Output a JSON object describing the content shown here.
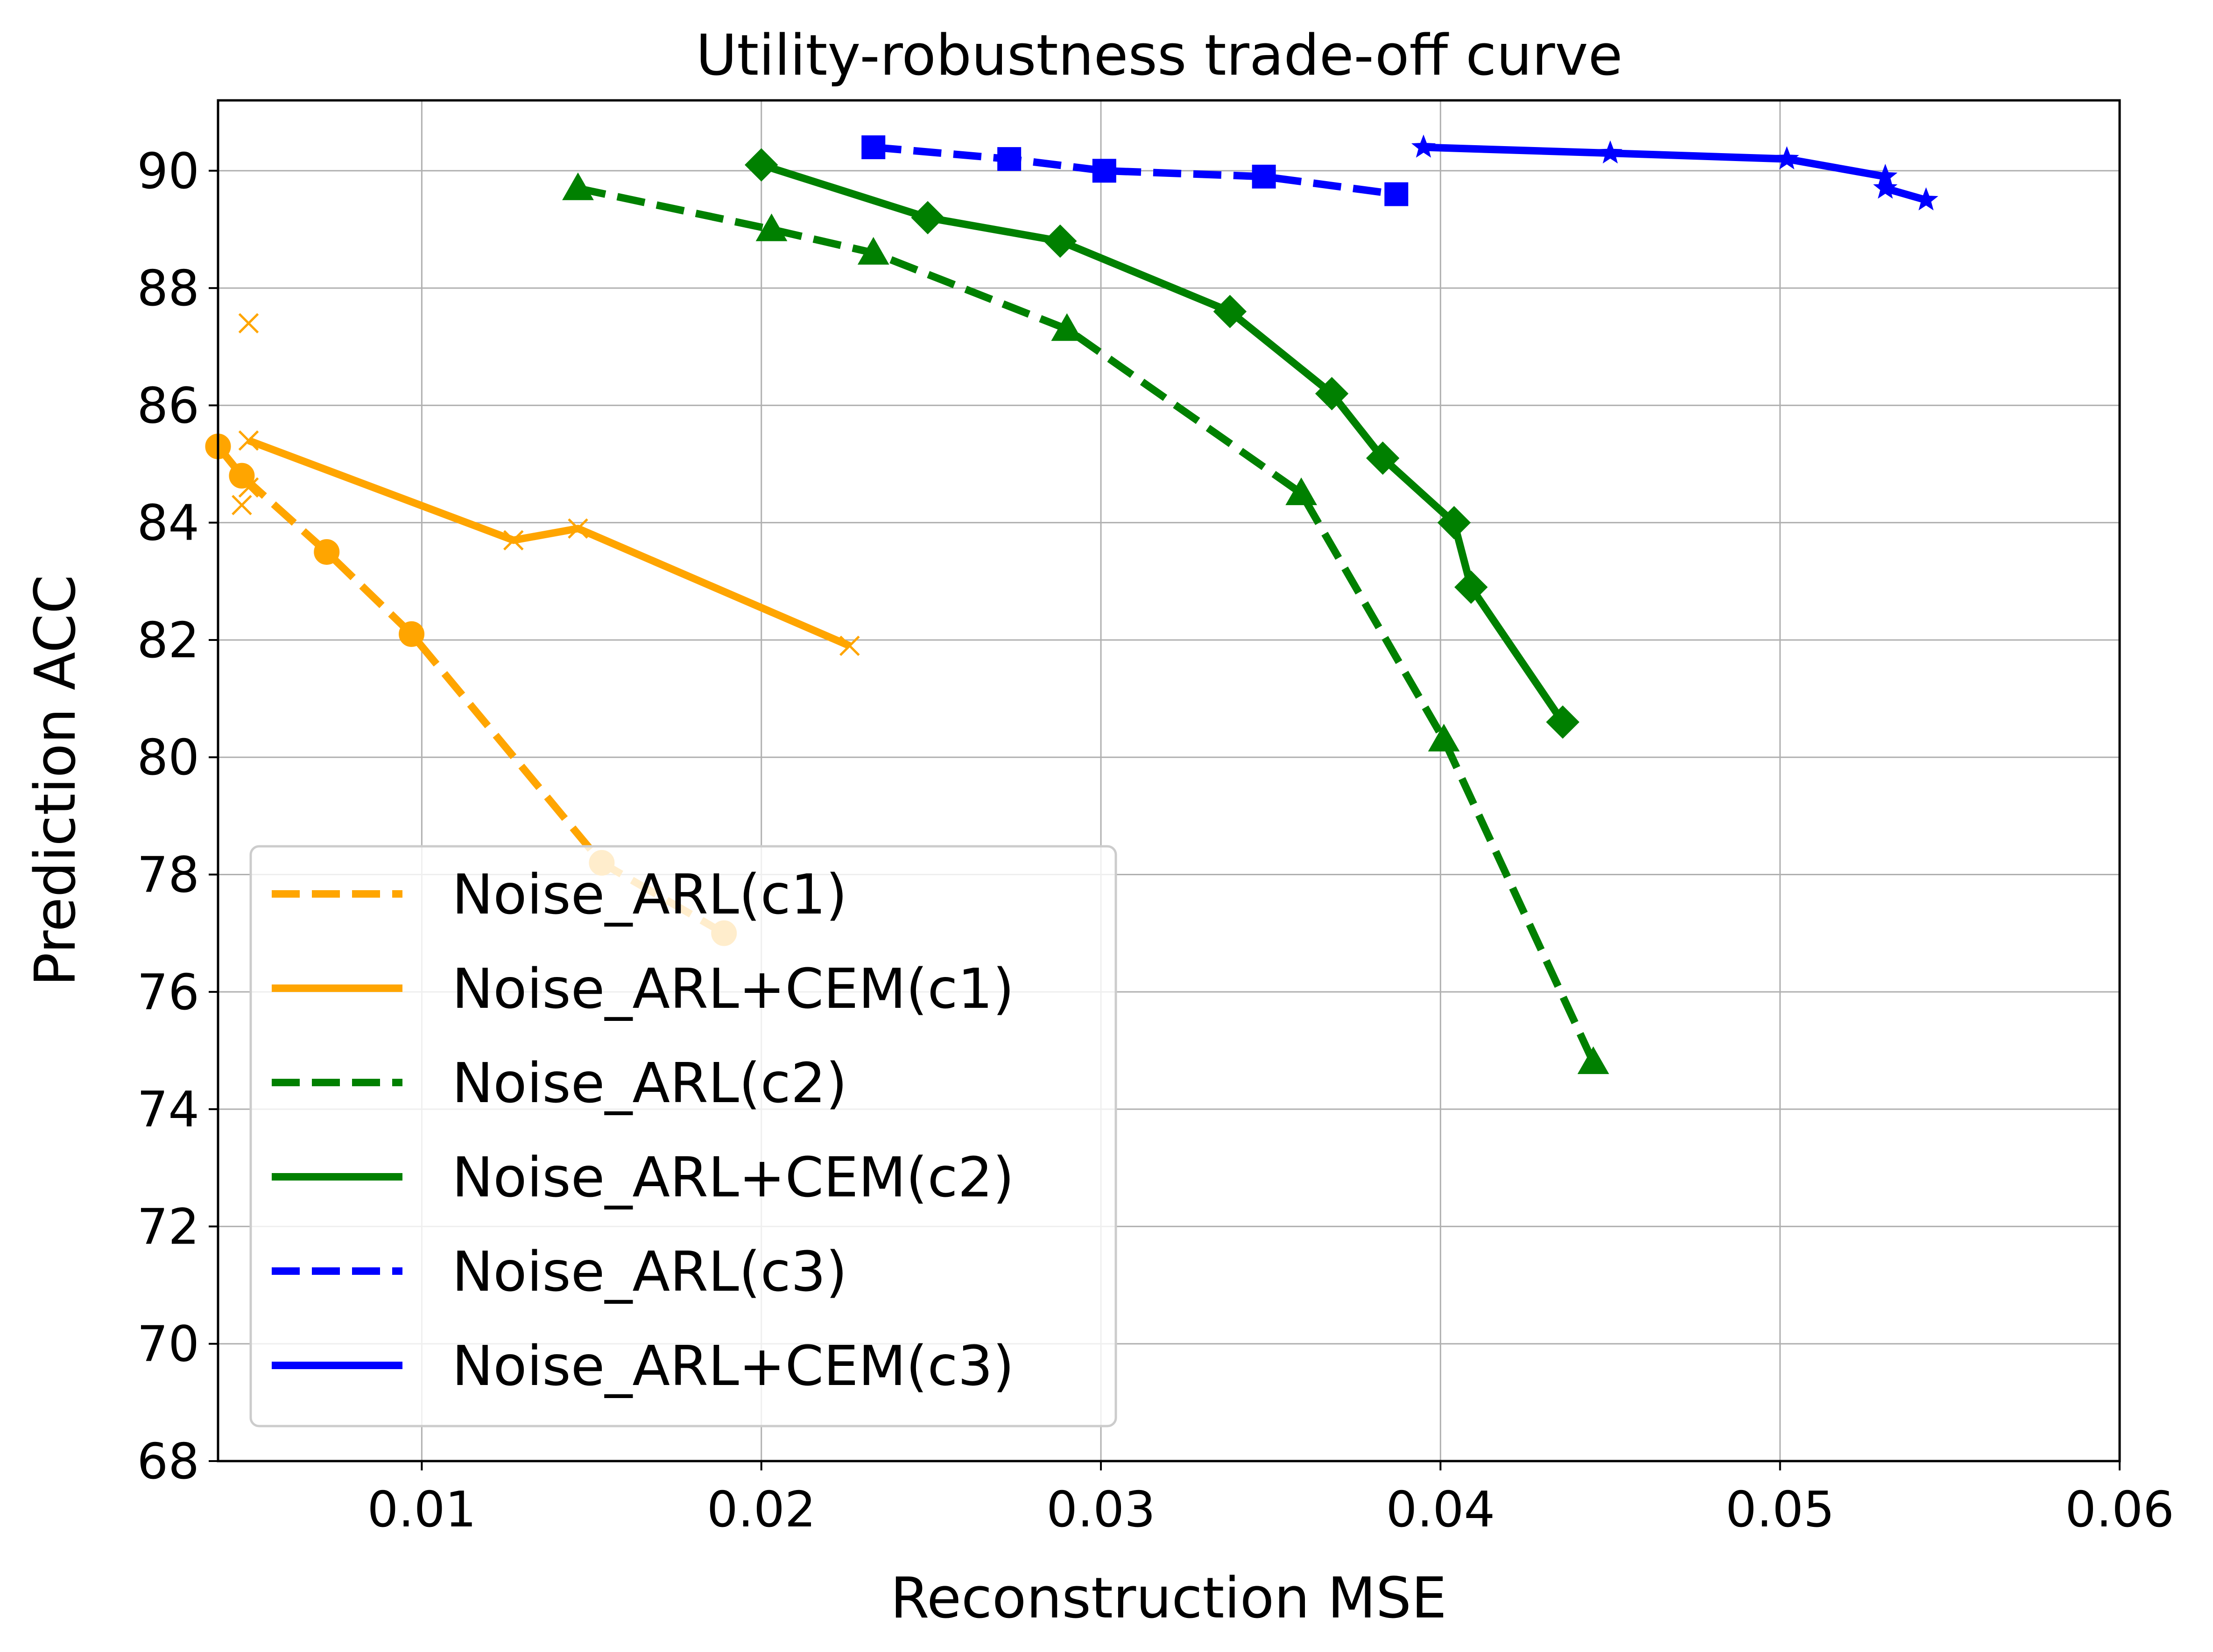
{
  "chart_data": {
    "type": "line",
    "title": "Utility-robustness trade-off curve",
    "xlabel": "Reconstruction MSE",
    "ylabel": "Prediction ACC",
    "xlim": [
      0.004,
      0.06
    ],
    "ylim": [
      68,
      91.2
    ],
    "xticks": [
      0.01,
      0.02,
      0.03,
      0.04,
      0.05,
      0.06
    ],
    "xtick_labels": [
      "0.01",
      "0.02",
      "0.03",
      "0.04",
      "0.05",
      "0.06"
    ],
    "yticks": [
      68,
      70,
      72,
      74,
      76,
      78,
      80,
      82,
      84,
      86,
      88,
      90
    ],
    "ytick_labels": [
      "68",
      "70",
      "72",
      "74",
      "76",
      "78",
      "80",
      "82",
      "84",
      "86",
      "88",
      "90"
    ],
    "grid": true,
    "legend_position": "lower-left",
    "series": [
      {
        "name": "Noise_ARL(c1)",
        "color": "#FFA500",
        "line_style": "dashed",
        "marker": "circle",
        "x": [
          0.004,
          0.0047,
          0.0072,
          0.0097,
          0.0153,
          0.0189
        ],
        "y": [
          85.3,
          84.8,
          83.5,
          82.1,
          78.2,
          77.0
        ]
      },
      {
        "name": "Noise_ARL+CEM(c1)",
        "color": "#FFA500",
        "line_style": "solid",
        "marker": "x",
        "x": [
          0.0049,
          0.0127,
          0.0146,
          0.0226
        ],
        "y": [
          85.4,
          83.7,
          83.9,
          81.9
        ]
      },
      {
        "name": "Noise_ARL(c2)",
        "color": "#008000",
        "line_style": "dashed",
        "marker": "triangle",
        "x": [
          0.0146,
          0.0203,
          0.0233,
          0.029,
          0.0359,
          0.0401,
          0.0445
        ],
        "y": [
          89.7,
          89.0,
          88.6,
          87.3,
          84.5,
          80.3,
          74.8
        ]
      },
      {
        "name": "Noise_ARL+CEM(c2)",
        "color": "#008000",
        "line_style": "solid",
        "marker": "diamond",
        "x": [
          0.02,
          0.0249,
          0.0288,
          0.0338,
          0.0368,
          0.0383,
          0.0404,
          0.0409,
          0.0436
        ],
        "y": [
          90.1,
          89.2,
          88.8,
          87.6,
          86.2,
          85.1,
          84.0,
          82.9,
          80.6
        ]
      },
      {
        "name": "Noise_ARL(c3)",
        "color": "#0000FF",
        "line_style": "dashed",
        "marker": "square",
        "x": [
          0.0233,
          0.0273,
          0.0301,
          0.0348,
          0.0387
        ],
        "y": [
          90.4,
          90.2,
          90.0,
          89.9,
          89.6
        ]
      },
      {
        "name": "Noise_ARL+CEM(c3)",
        "color": "#0000FF",
        "line_style": "solid",
        "marker": "star",
        "x": [
          0.0395,
          0.045,
          0.0502,
          0.0531,
          0.0531,
          0.0543
        ],
        "y": [
          90.4,
          90.3,
          90.2,
          89.9,
          89.7,
          89.5
        ]
      }
    ],
    "extra_markers": [
      {
        "series": "Noise_ARL+CEM(c1)",
        "x": [
          0.0049,
          0.0047,
          0.0049
        ],
        "y": [
          87.4,
          84.3,
          84.6
        ]
      }
    ]
  }
}
